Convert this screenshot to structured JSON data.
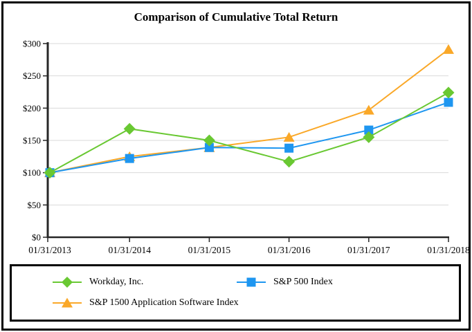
{
  "title": "Comparison of Cumulative Total Return",
  "colors": {
    "workday_green": "#69C832",
    "sp500_blue": "#1E96F0",
    "sp1500_orange": "#FAA828",
    "gridline": "#D9D9D9",
    "axis": "#262626",
    "text": "#000000"
  },
  "chart_data": {
    "type": "line",
    "title": "Comparison of Cumulative Total Return",
    "x": [
      "01/31/2013",
      "01/31/2014",
      "01/31/2015",
      "01/31/2016",
      "01/31/2017",
      "01/31/2018"
    ],
    "series": [
      {
        "name": "Workday, Inc.",
        "marker": "diamond",
        "color": "#69C832",
        "values": [
          100,
          168,
          150,
          117,
          155,
          224
        ]
      },
      {
        "name": "S&P 500 Index",
        "marker": "square",
        "color": "#1E96F0",
        "values": [
          100,
          122,
          139,
          138,
          166,
          209
        ]
      },
      {
        "name": "S&P 1500 Application Software Index",
        "marker": "triangle",
        "color": "#FAA828",
        "values": [
          100,
          125,
          139,
          155,
          197,
          291
        ]
      }
    ],
    "xlabel": "",
    "ylabel": "",
    "ylim": [
      0,
      300
    ],
    "ytick_step": 50,
    "ytick_labels": [
      "$0",
      "$50",
      "$100",
      "$150",
      "$200",
      "$250",
      "$300"
    ],
    "grid": true,
    "legend_position": "boxed-bottom"
  }
}
